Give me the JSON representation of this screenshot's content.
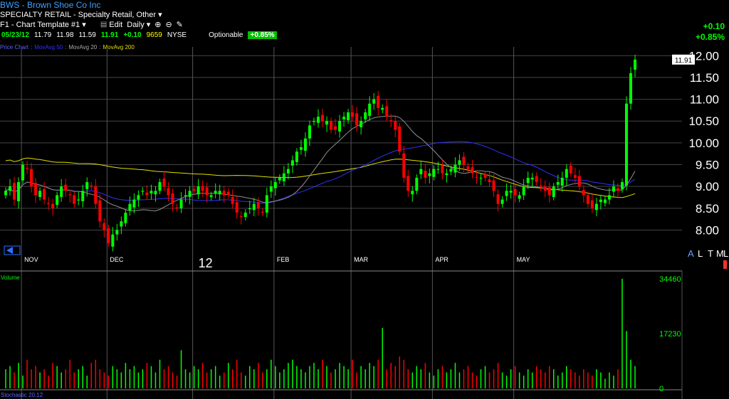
{
  "header": {
    "symbol_line": "BWS - Brown Shoe Co Inc",
    "sector_line": "SPECIALTY RETAIL - Specialty Retail, Other",
    "template": "F1 - Chart Template #1",
    "edit": "Edit",
    "period": "Daily"
  },
  "quote": {
    "date": "05/23/12",
    "open": "11.79",
    "high": "11.98",
    "low": "11.59",
    "close": "11.91",
    "change": "+0.10",
    "volume": "9659",
    "exchange": "NYSE",
    "optionable": "Optionable",
    "pct": "+0.85%"
  },
  "change_top": {
    "abs": "+0.10",
    "pct": "+0.85%"
  },
  "legend": {
    "chart": "Price Chart",
    "ma50": "MovAvg 50",
    "ma20": "MovAvg 20",
    "ma200": "MovAvg 200"
  },
  "colors": {
    "up": "#00ff00",
    "down": "#ff0000",
    "ma50": "#3030ff",
    "ma20": "#909090",
    "ma200": "#e0e000",
    "grid": "#444444"
  },
  "timeframe_buttons": [
    "A",
    "L",
    "T",
    "M",
    "L"
  ],
  "volume_label": "Volume",
  "osc_label": "Stochastic 20,12",
  "chart_data": [
    {
      "type": "candlestick",
      "y_ticks": [
        "12.00",
        "11.50",
        "11.00",
        "10.50",
        "10.00",
        "9.50",
        "9.00",
        "8.50",
        "8.00"
      ],
      "ylim": [
        7.6,
        12.2
      ],
      "x_labels": [
        "NOV",
        "DEC",
        "12",
        "FEB",
        "MAR",
        "APR",
        "MAY"
      ],
      "last_price_tag": "11.91",
      "series": {
        "close": [
          8.9,
          9.0,
          8.7,
          9.1,
          9.5,
          9.4,
          9.0,
          8.8,
          8.9,
          8.7,
          8.6,
          8.5,
          8.8,
          9.0,
          8.9,
          8.8,
          8.6,
          8.7,
          8.9,
          9.1,
          9.0,
          8.6,
          8.2,
          8.0,
          7.7,
          7.9,
          8.0,
          8.2,
          8.4,
          8.6,
          8.7,
          8.8,
          8.9,
          8.8,
          8.9,
          8.9,
          9.1,
          9.0,
          8.8,
          8.6,
          8.5,
          8.7,
          8.8,
          8.9,
          8.9,
          9.0,
          8.9,
          8.8,
          8.8,
          8.9,
          8.9,
          8.8,
          8.8,
          8.6,
          8.4,
          8.3,
          8.4,
          8.5,
          8.6,
          8.5,
          8.4,
          8.8,
          9.0,
          9.1,
          9.2,
          9.3,
          9.4,
          9.6,
          9.8,
          9.9,
          10.1,
          10.4,
          10.5,
          10.6,
          10.5,
          10.5,
          10.3,
          10.3,
          10.5,
          10.6,
          10.7,
          10.6,
          10.4,
          10.5,
          10.7,
          10.9,
          11.0,
          10.8,
          10.8,
          10.6,
          10.5,
          10.3,
          9.8,
          9.2,
          8.9,
          8.9,
          9.2,
          9.4,
          9.2,
          9.3,
          9.4,
          9.4,
          9.3,
          9.3,
          9.4,
          9.5,
          9.6,
          9.5,
          9.4,
          9.3,
          9.2,
          9.2,
          9.2,
          9.1,
          8.9,
          8.6,
          8.7,
          8.9,
          8.9,
          8.8,
          8.8,
          9.0,
          9.2,
          9.2,
          9.1,
          9.0,
          8.9,
          8.8,
          9.0,
          9.1,
          9.2,
          9.4,
          9.3,
          9.2,
          9.0,
          8.8,
          8.6,
          8.5,
          8.6,
          8.7,
          8.7,
          8.8,
          9.0,
          8.9,
          9.1,
          10.9,
          11.6,
          11.91
        ]
      }
    },
    {
      "type": "bar",
      "title": "Volume",
      "y_ticks": [
        "34460",
        "17230",
        "0"
      ],
      "ylim": [
        0,
        34460
      ],
      "values": [
        6000,
        7000,
        5000,
        8000,
        4000,
        9000,
        6000,
        7000,
        5000,
        6000,
        4000,
        8000,
        7000,
        5000,
        6000,
        9000,
        5000,
        6000,
        7000,
        4000,
        8000,
        9000,
        6000,
        5000,
        4000,
        7000,
        6000,
        5000,
        8000,
        6000,
        7000,
        5000,
        6000,
        8000,
        7000,
        5000,
        9000,
        6000,
        7000,
        5000,
        4000,
        12000,
        6000,
        5000,
        7000,
        6000,
        8000,
        5000,
        6000,
        7000,
        4000,
        5000,
        8000,
        6000,
        9000,
        5000,
        4000,
        7000,
        6000,
        8000,
        5000,
        6000,
        9000,
        7000,
        5000,
        6000,
        8000,
        9000,
        7000,
        6000,
        5000,
        7000,
        8000,
        6000,
        9000,
        7000,
        5000,
        6000,
        8000,
        7000,
        6000,
        9000,
        5000,
        7000,
        6000,
        8000,
        7000,
        9000,
        19000,
        6000,
        8000,
        7000,
        10000,
        9000,
        6000,
        5000,
        7000,
        6000,
        8000,
        5000,
        4000,
        6000,
        7000,
        5000,
        6000,
        8000,
        5000,
        6000,
        7000,
        5000,
        4000,
        6000,
        7000,
        5000,
        6000,
        8000,
        5000,
        4000,
        6000,
        7000,
        5000,
        4000,
        6000,
        5000,
        7000,
        6000,
        5000,
        7000,
        6000,
        4000,
        5000,
        7000,
        6000,
        5000,
        4000,
        6000,
        5000,
        4000,
        6000,
        5000,
        3000,
        5000,
        4000,
        6000,
        34460,
        18000,
        9000,
        7000
      ]
    }
  ]
}
